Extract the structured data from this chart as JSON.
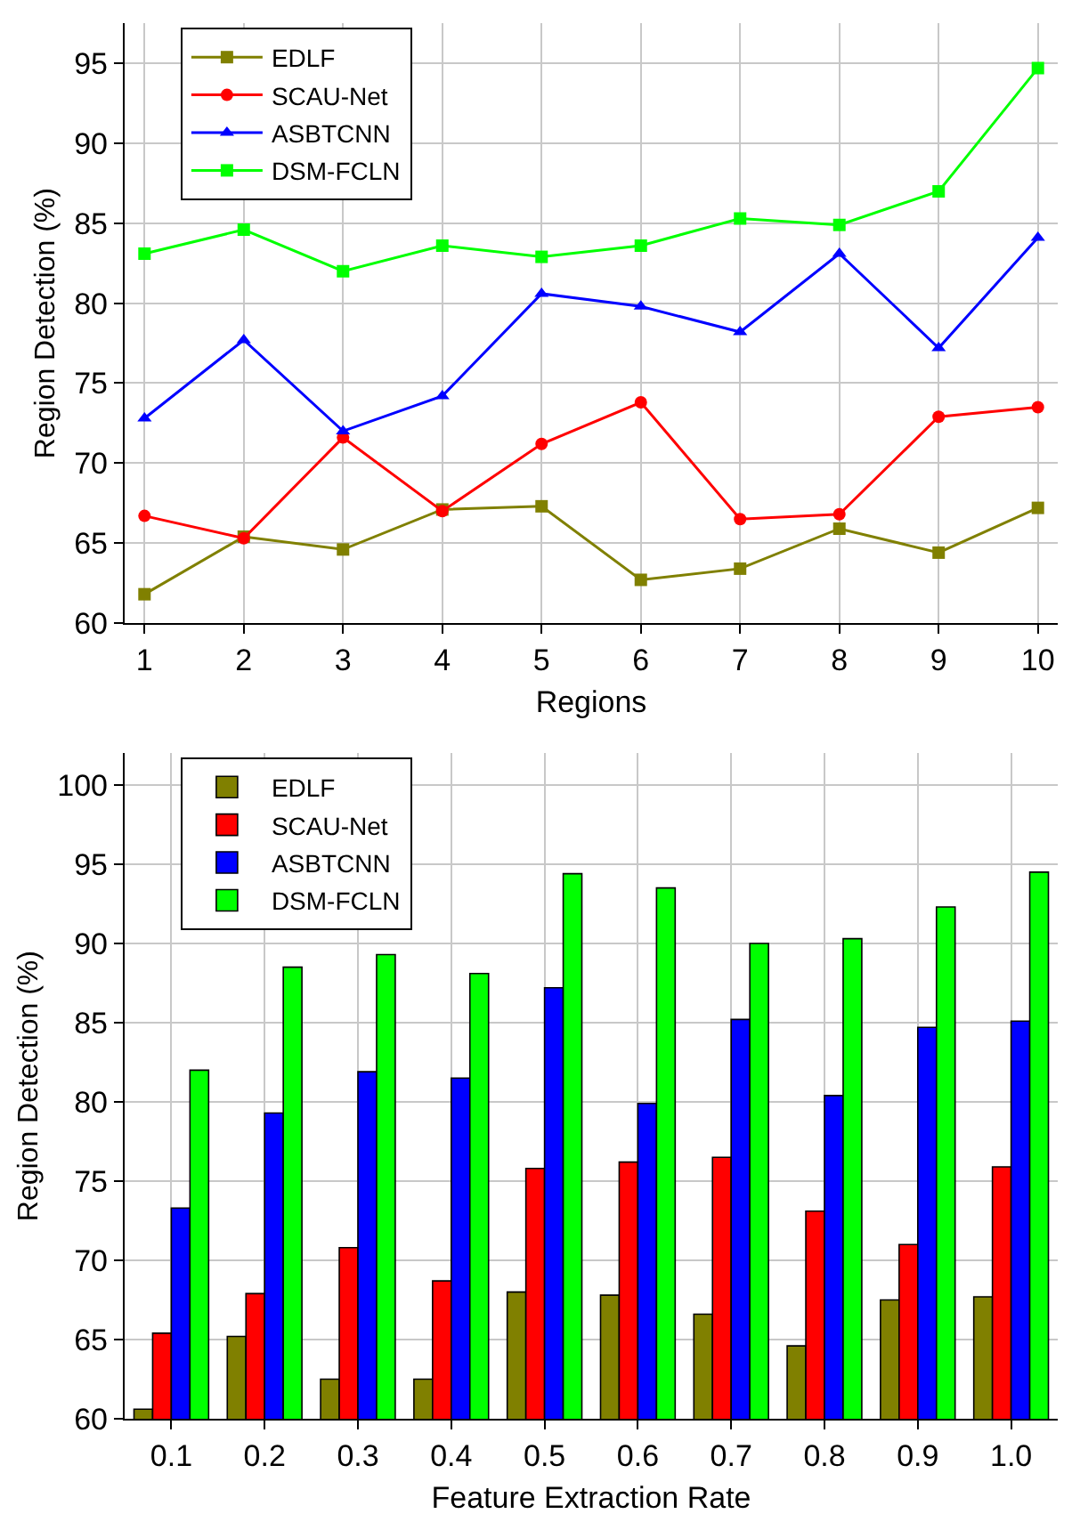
{
  "chart_data": [
    {
      "type": "line",
      "xlabel": "Regions",
      "ylabel": "Region Detection (%)",
      "x": [
        1,
        2,
        3,
        4,
        5,
        6,
        7,
        8,
        9,
        10
      ],
      "xlim": [
        0.8,
        10.2
      ],
      "xticks": [
        1,
        2,
        3,
        4,
        5,
        6,
        7,
        8,
        9,
        10
      ],
      "ylim": [
        60,
        97.5
      ],
      "yticks": [
        60,
        65,
        70,
        75,
        80,
        85,
        90,
        95
      ],
      "grid": true,
      "legend": "top left",
      "series": [
        {
          "name": "EDLF",
          "color": "#808000",
          "marker": "square",
          "values": [
            61.8,
            65.4,
            64.6,
            67.1,
            67.3,
            62.7,
            63.4,
            65.9,
            64.4,
            67.2
          ]
        },
        {
          "name": "SCAU-Net",
          "color": "#ff0000",
          "marker": "circle",
          "values": [
            66.7,
            65.3,
            71.6,
            67.0,
            71.2,
            73.8,
            66.5,
            66.8,
            72.9,
            73.5
          ]
        },
        {
          "name": "ASBTCNN",
          "color": "#0000ff",
          "marker": "triangle",
          "values": [
            72.8,
            77.7,
            72.0,
            74.2,
            80.6,
            79.8,
            78.2,
            83.1,
            77.2,
            84.1
          ]
        },
        {
          "name": "DSM-FCLN",
          "color": "#00ff00",
          "marker": "square",
          "values": [
            83.1,
            84.6,
            82.0,
            83.6,
            82.9,
            83.6,
            85.3,
            84.9,
            87.0,
            94.7
          ]
        }
      ]
    },
    {
      "type": "bar",
      "xlabel": "Feature Extraction Rate",
      "ylabel": "Region Detection (%)",
      "categories": [
        "0.1",
        "0.2",
        "0.3",
        "0.4",
        "0.5",
        "0.6",
        "0.7",
        "0.8",
        "0.9",
        "1.0"
      ],
      "ylim": [
        60,
        102
      ],
      "yticks": [
        60,
        65,
        70,
        75,
        80,
        85,
        90,
        95,
        100
      ],
      "grid": true,
      "legend": "top left",
      "series": [
        {
          "name": "EDLF",
          "color": "#808000",
          "values": [
            60.6,
            65.2,
            62.5,
            62.5,
            68.0,
            67.8,
            66.6,
            64.6,
            67.5,
            67.7
          ]
        },
        {
          "name": "SCAU-Net",
          "color": "#ff0000",
          "values": [
            65.4,
            67.9,
            70.8,
            68.7,
            75.8,
            76.2,
            76.5,
            73.1,
            71.0,
            75.9
          ]
        },
        {
          "name": "ASBTCNN",
          "color": "#0000ff",
          "values": [
            73.3,
            79.3,
            81.9,
            81.5,
            87.2,
            79.9,
            85.2,
            80.4,
            84.7,
            85.1
          ]
        },
        {
          "name": "DSM-FCLN",
          "color": "#00ff00",
          "values": [
            82.0,
            88.5,
            89.3,
            88.1,
            94.4,
            93.5,
            90.0,
            90.3,
            92.3,
            94.5
          ]
        }
      ]
    }
  ]
}
